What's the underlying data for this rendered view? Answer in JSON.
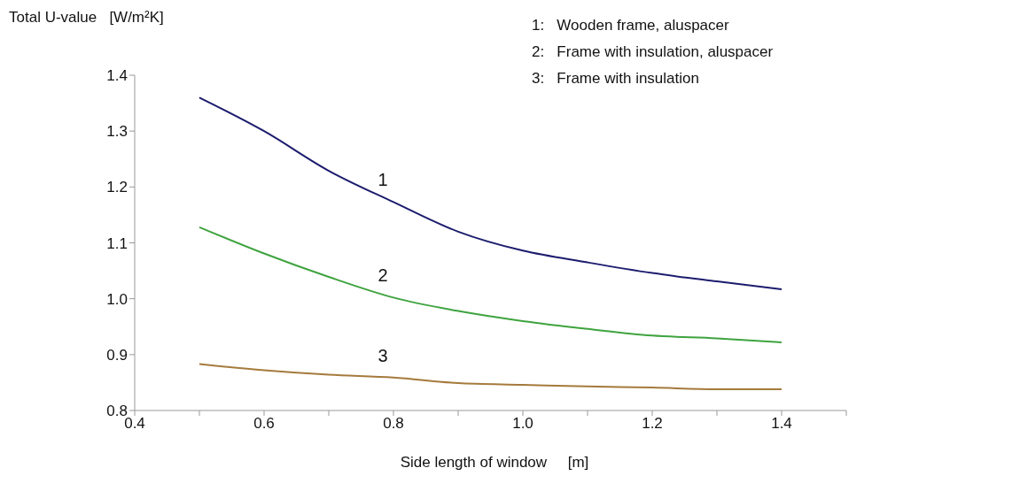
{
  "chart_data": {
    "type": "line",
    "ylabel": "Total U-value   [W/m²K]",
    "xlabel": "Side length of window     [m]",
    "x": [
      0.5,
      0.6,
      0.7,
      0.8,
      0.9,
      1.0,
      1.1,
      1.2,
      1.3,
      1.4
    ],
    "series": [
      {
        "name": "1",
        "color": "#1c1c6e",
        "values": [
          1.36,
          1.3,
          1.229,
          1.173,
          1.12,
          1.086,
          1.065,
          1.046,
          1.031,
          1.017
        ]
      },
      {
        "name": "2",
        "color": "#3fa33f",
        "values": [
          1.128,
          1.081,
          1.039,
          1.002,
          0.978,
          0.96,
          0.946,
          0.934,
          0.929,
          0.922
        ]
      },
      {
        "name": "3",
        "color": "#a57a3c",
        "values": [
          0.883,
          0.872,
          0.864,
          0.859,
          0.849,
          0.846,
          0.843,
          0.841,
          0.838,
          0.838
        ]
      }
    ],
    "xlim": [
      0.4,
      1.5
    ],
    "xticks": [
      0.4,
      {
        "value": 0.5,
        "label": null
      },
      0.6,
      {
        "value": 0.7,
        "label": null
      },
      0.8,
      {
        "value": 0.9,
        "label": null
      },
      {
        "value": 1.0,
        "label": "1.0"
      },
      {
        "value": 1.1,
        "label": null
      },
      1.2,
      {
        "value": 1.3,
        "label": null
      },
      1.4,
      {
        "value": 1.5,
        "label": null
      }
    ],
    "ylim": [
      0.8,
      1.4
    ],
    "yticks": [
      0.8,
      0.9,
      {
        "value": 1.0,
        "label": "1.0"
      },
      1.1,
      1.2,
      1.3,
      1.4
    ],
    "grid": false,
    "marker": "none",
    "line_style": "solid",
    "legend": false,
    "annotations": [
      "1:   Wooden frame, aluspacer",
      "2:   Frame with insulation, aluspacer",
      "3:   Frame with insulation"
    ]
  }
}
